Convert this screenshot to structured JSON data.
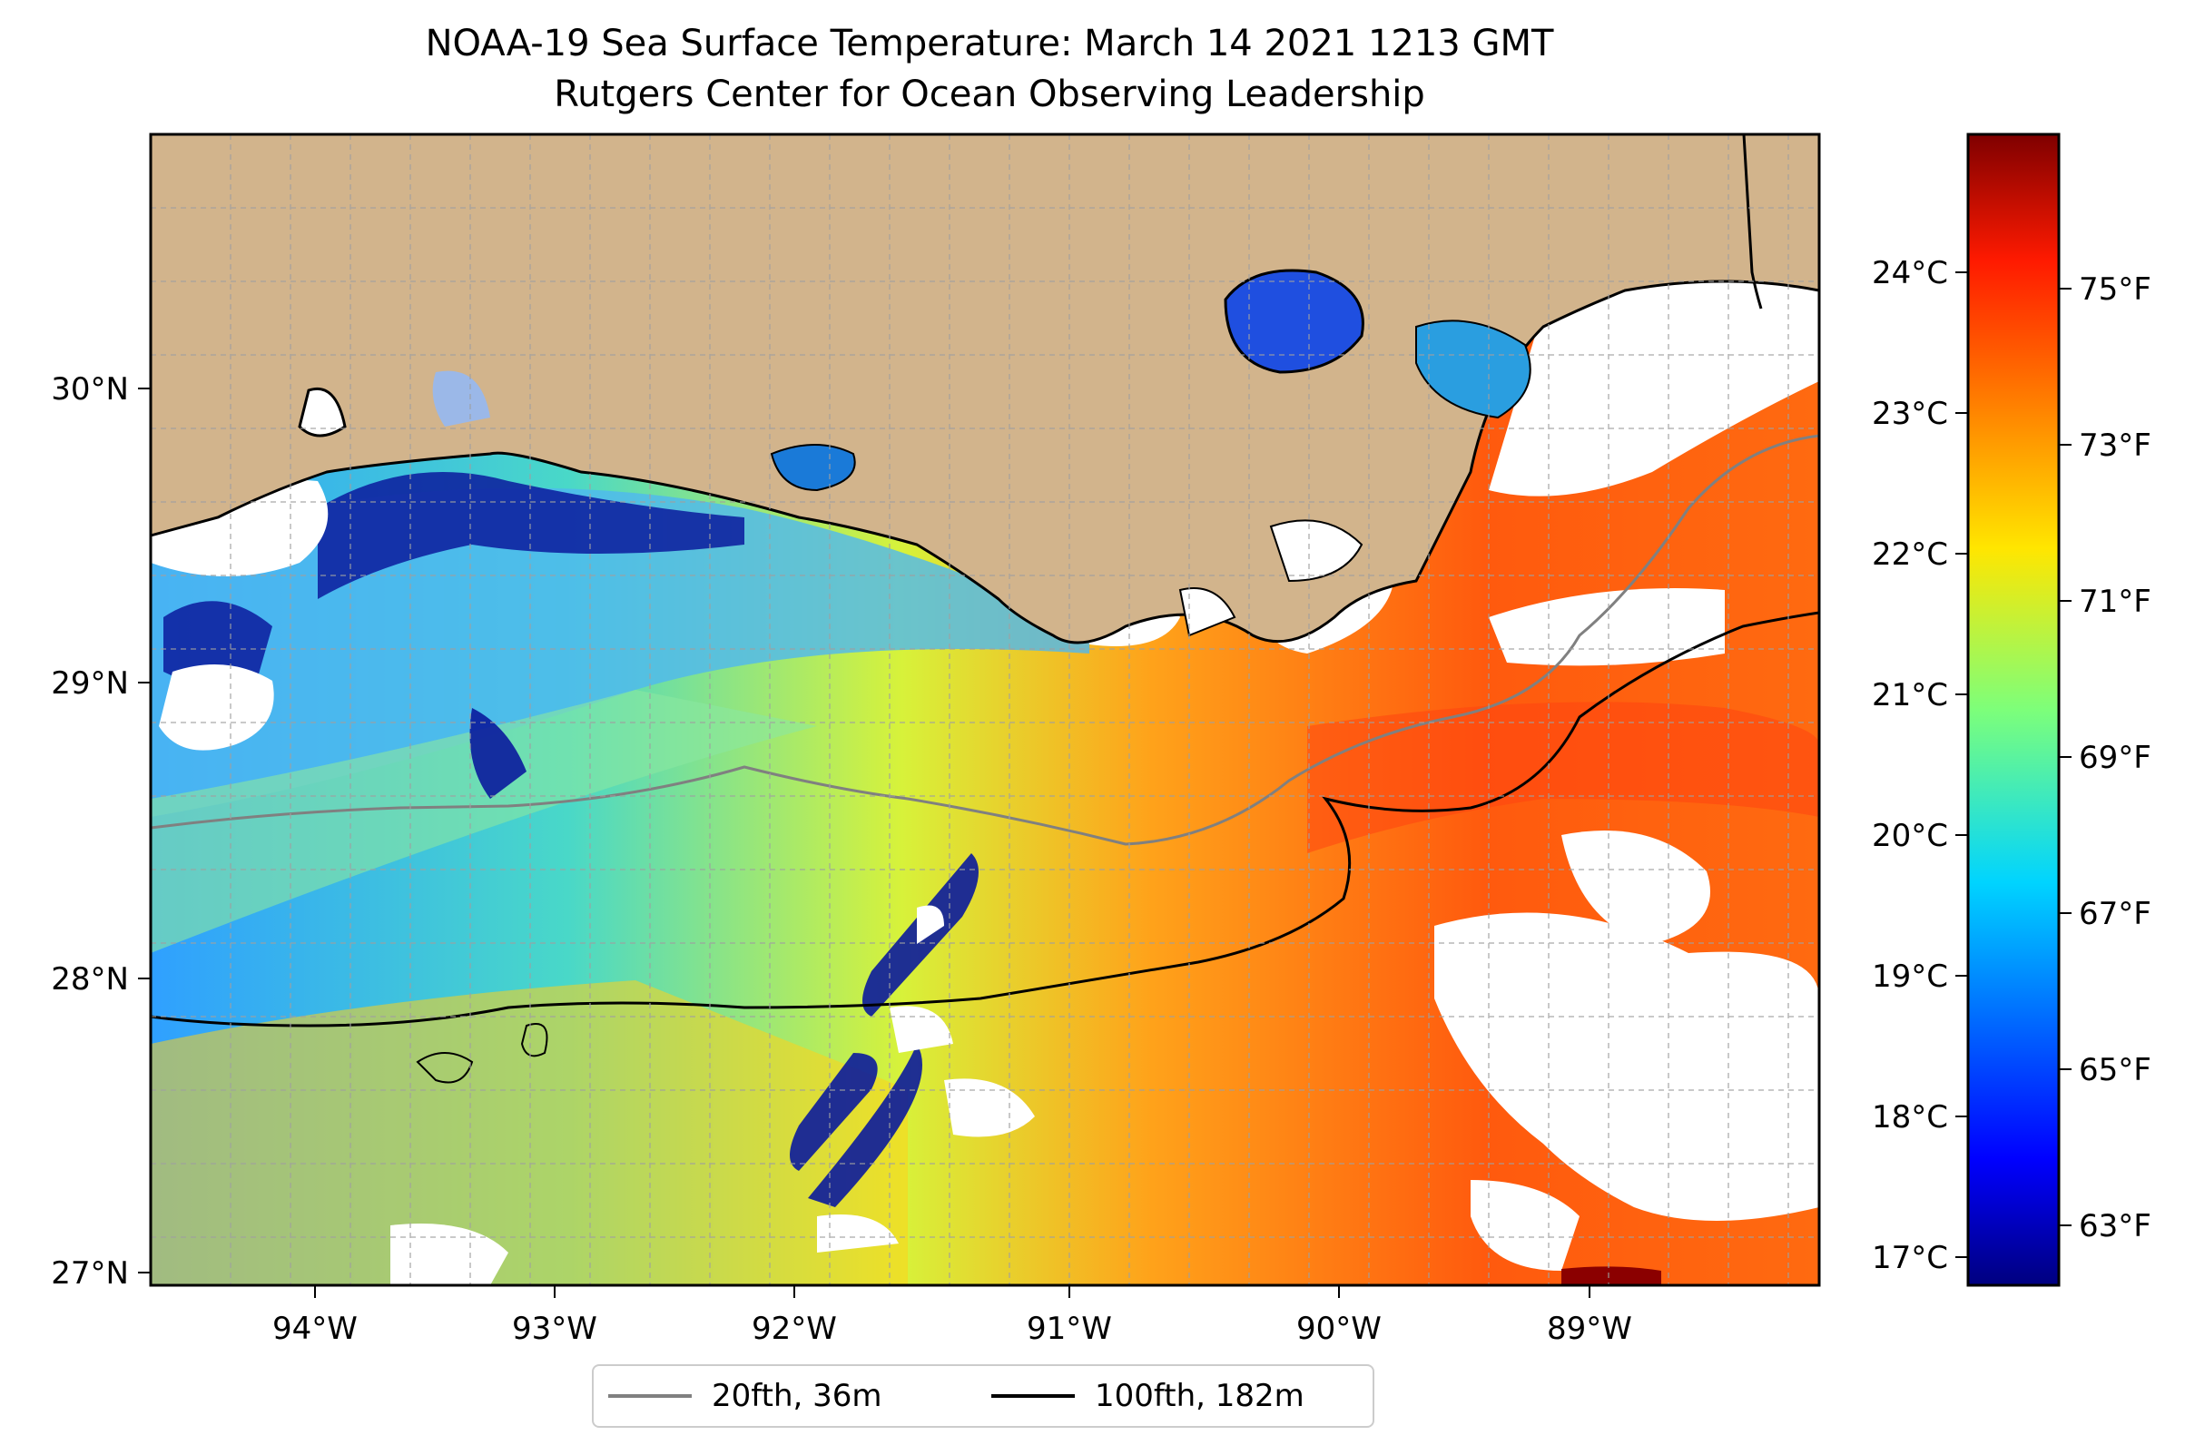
{
  "title": {
    "line1": "NOAA-19 Sea Surface Temperature: March 14 2021 1213 GMT",
    "line2": "Rutgers Center for Ocean Observing Leadership"
  },
  "map": {
    "x_ticks": [
      "94°W",
      "93°W",
      "92°W",
      "91°W",
      "90°W",
      "89°W"
    ],
    "y_ticks": [
      "30°N",
      "29°N",
      "28°N",
      "27°N"
    ],
    "land_color": "#D2B48C",
    "grid": "dashed",
    "colormap": "jet"
  },
  "colorbar": {
    "celsius_ticks": [
      "24°C",
      "23°C",
      "22°C",
      "21°C",
      "20°C",
      "19°C",
      "18°C",
      "17°C"
    ],
    "fahrenheit_ticks": [
      "75°F",
      "73°F",
      "71°F",
      "69°F",
      "67°F",
      "65°F",
      "63°F"
    ]
  },
  "legend": {
    "placement": "bottom-center",
    "entries": [
      {
        "label": "20fth, 36m",
        "color": "#808080"
      },
      {
        "label": "100fth, 182m",
        "color": "#000000"
      }
    ]
  }
}
